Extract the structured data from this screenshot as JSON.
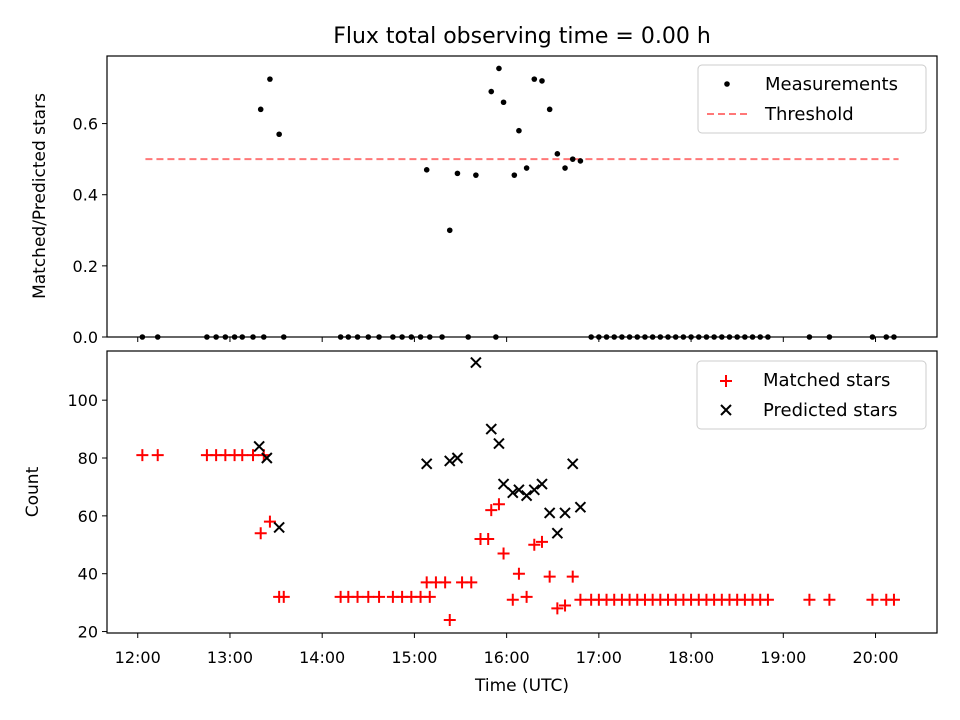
{
  "title": "Flux total observing time = 0.00 h",
  "chart_data": [
    {
      "type": "scatter",
      "ylabel": "Matched/Predicted stars",
      "xlim": [
        "11:40",
        "20:40"
      ],
      "ylim": [
        0,
        0.79
      ],
      "yticks": [
        0.0,
        0.2,
        0.4,
        0.6
      ],
      "ytick_labels": [
        "0.0",
        "0.2",
        "0.4",
        "0.6"
      ],
      "legend": {
        "position": "top-right",
        "entries": [
          "Measurements",
          "Threshold"
        ]
      },
      "threshold": {
        "name": "Threshold",
        "value": 0.5,
        "x_range": [
          "12:05",
          "20:15"
        ],
        "color": "#ff7777"
      },
      "series": [
        {
          "name": "Measurements",
          "marker": "dot",
          "color": "#000000",
          "points": [
            [
              "12:03",
              0
            ],
            [
              "12:13",
              0
            ],
            [
              "12:45",
              0
            ],
            [
              "12:51",
              0
            ],
            [
              "12:57",
              0
            ],
            [
              "13:03",
              0
            ],
            [
              "13:08",
              0
            ],
            [
              "13:15",
              0
            ],
            [
              "13:22",
              0
            ],
            [
              "13:20",
              0.64
            ],
            [
              "13:26",
              0.725
            ],
            [
              "13:32",
              0.57
            ],
            [
              "13:35",
              0
            ],
            [
              "14:12",
              0
            ],
            [
              "14:17",
              0
            ],
            [
              "14:23",
              0
            ],
            [
              "14:30",
              0
            ],
            [
              "14:37",
              0
            ],
            [
              "14:46",
              0
            ],
            [
              "14:52",
              0
            ],
            [
              "14:58",
              0
            ],
            [
              "15:04",
              0
            ],
            [
              "15:10",
              0
            ],
            [
              "15:18",
              0
            ],
            [
              "15:35",
              0
            ],
            [
              "15:53",
              0
            ],
            [
              "15:08",
              0.47
            ],
            [
              "15:23",
              0.3
            ],
            [
              "15:28",
              0.46
            ],
            [
              "15:40",
              0.455
            ],
            [
              "15:50",
              0.69
            ],
            [
              "15:55",
              0.755
            ],
            [
              "15:58",
              0.66
            ],
            [
              "16:05",
              0.455
            ],
            [
              "16:08",
              0.58
            ],
            [
              "16:13",
              0.475
            ],
            [
              "16:18",
              0.725
            ],
            [
              "16:23",
              0.72
            ],
            [
              "16:28",
              0.64
            ],
            [
              "16:33",
              0.515
            ],
            [
              "16:38",
              0.475
            ],
            [
              "16:43",
              0.5
            ],
            [
              "16:48",
              0.495
            ],
            [
              "16:55",
              0
            ],
            [
              "17:00",
              0
            ],
            [
              "17:05",
              0
            ],
            [
              "17:10",
              0
            ],
            [
              "17:15",
              0
            ],
            [
              "17:20",
              0
            ],
            [
              "17:25",
              0
            ],
            [
              "17:30",
              0
            ],
            [
              "17:35",
              0
            ],
            [
              "17:40",
              0
            ],
            [
              "17:45",
              0
            ],
            [
              "17:50",
              0
            ],
            [
              "17:55",
              0
            ],
            [
              "18:00",
              0
            ],
            [
              "18:05",
              0
            ],
            [
              "18:10",
              0
            ],
            [
              "18:15",
              0
            ],
            [
              "18:20",
              0
            ],
            [
              "18:25",
              0
            ],
            [
              "18:30",
              0
            ],
            [
              "18:35",
              0
            ],
            [
              "18:40",
              0
            ],
            [
              "18:45",
              0
            ],
            [
              "18:50",
              0
            ],
            [
              "19:17",
              0
            ],
            [
              "19:30",
              0
            ],
            [
              "19:58",
              0
            ],
            [
              "20:07",
              0
            ],
            [
              "20:12",
              0
            ]
          ]
        }
      ]
    },
    {
      "type": "scatter",
      "xlabel": "Time (UTC)",
      "ylabel": "Count",
      "xlim": [
        "11:40",
        "20:40"
      ],
      "ylim": [
        19.5,
        117
      ],
      "xticks": [
        "12:00",
        "13:00",
        "14:00",
        "15:00",
        "16:00",
        "17:00",
        "18:00",
        "19:00",
        "20:00"
      ],
      "yticks": [
        20,
        40,
        60,
        80,
        100
      ],
      "ytick_labels": [
        "20",
        "40",
        "60",
        "80",
        "100"
      ],
      "legend": {
        "position": "top-right",
        "entries": [
          "Matched stars",
          "Predicted stars"
        ]
      },
      "series": [
        {
          "name": "Matched stars",
          "marker": "plus",
          "color": "#ff0000",
          "points": [
            [
              "12:03",
              81
            ],
            [
              "12:13",
              81
            ],
            [
              "12:45",
              81
            ],
            [
              "12:51",
              81
            ],
            [
              "12:57",
              81
            ],
            [
              "13:03",
              81
            ],
            [
              "13:08",
              81
            ],
            [
              "13:15",
              81
            ],
            [
              "13:22",
              81
            ],
            [
              "13:20",
              54
            ],
            [
              "13:26",
              58
            ],
            [
              "13:32",
              32
            ],
            [
              "13:35",
              32
            ],
            [
              "14:12",
              32
            ],
            [
              "14:17",
              32
            ],
            [
              "14:23",
              32
            ],
            [
              "14:30",
              32
            ],
            [
              "14:37",
              32
            ],
            [
              "14:46",
              32
            ],
            [
              "14:52",
              32
            ],
            [
              "14:58",
              32
            ],
            [
              "15:04",
              32
            ],
            [
              "15:10",
              32
            ],
            [
              "15:08",
              37
            ],
            [
              "15:14",
              37
            ],
            [
              "15:20",
              37
            ],
            [
              "15:31",
              37
            ],
            [
              "15:37",
              37
            ],
            [
              "15:23",
              24
            ],
            [
              "15:43",
              52
            ],
            [
              "15:48",
              52
            ],
            [
              "15:50",
              62
            ],
            [
              "15:55",
              64
            ],
            [
              "15:58",
              47
            ],
            [
              "16:04",
              31
            ],
            [
              "16:08",
              40
            ],
            [
              "16:13",
              32
            ],
            [
              "16:18",
              50
            ],
            [
              "16:23",
              51
            ],
            [
              "16:28",
              39
            ],
            [
              "16:33",
              28
            ],
            [
              "16:38",
              29
            ],
            [
              "16:43",
              39
            ],
            [
              "16:48",
              31
            ],
            [
              "16:55",
              31
            ],
            [
              "17:00",
              31
            ],
            [
              "17:05",
              31
            ],
            [
              "17:10",
              31
            ],
            [
              "17:15",
              31
            ],
            [
              "17:20",
              31
            ],
            [
              "17:25",
              31
            ],
            [
              "17:30",
              31
            ],
            [
              "17:35",
              31
            ],
            [
              "17:40",
              31
            ],
            [
              "17:45",
              31
            ],
            [
              "17:50",
              31
            ],
            [
              "17:55",
              31
            ],
            [
              "18:00",
              31
            ],
            [
              "18:05",
              31
            ],
            [
              "18:10",
              31
            ],
            [
              "18:15",
              31
            ],
            [
              "18:20",
              31
            ],
            [
              "18:25",
              31
            ],
            [
              "18:30",
              31
            ],
            [
              "18:35",
              31
            ],
            [
              "18:40",
              31
            ],
            [
              "18:45",
              31
            ],
            [
              "18:50",
              31
            ],
            [
              "19:17",
              31
            ],
            [
              "19:30",
              31
            ],
            [
              "19:58",
              31
            ],
            [
              "20:07",
              31
            ],
            [
              "20:12",
              31
            ]
          ]
        },
        {
          "name": "Predicted stars",
          "marker": "x",
          "color": "#000000",
          "points": [
            [
              "13:19",
              84
            ],
            [
              "13:24",
              80
            ],
            [
              "13:32",
              56
            ],
            [
              "15:08",
              78
            ],
            [
              "15:23",
              79
            ],
            [
              "15:28",
              80
            ],
            [
              "15:40",
              113
            ],
            [
              "15:50",
              90
            ],
            [
              "15:55",
              85
            ],
            [
              "15:58",
              71
            ],
            [
              "16:04",
              68
            ],
            [
              "16:08",
              69
            ],
            [
              "16:13",
              67
            ],
            [
              "16:18",
              69
            ],
            [
              "16:23",
              71
            ],
            [
              "16:28",
              61
            ],
            [
              "16:33",
              54
            ],
            [
              "16:38",
              61
            ],
            [
              "16:43",
              78
            ],
            [
              "16:48",
              63
            ]
          ]
        }
      ]
    }
  ]
}
